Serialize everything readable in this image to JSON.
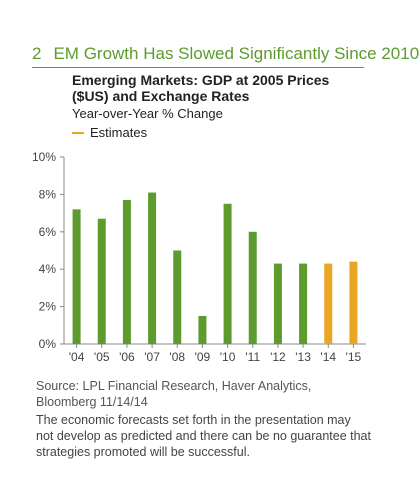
{
  "header": {
    "number": "2",
    "title": "EM Growth Has Slowed Significantly Since 2010"
  },
  "chart_data": {
    "type": "bar",
    "title": "Emerging Markets: GDP at 2005 Prices ($US) and Exchange Rates",
    "subtitle": "Year-over-Year % Change",
    "legend": [
      {
        "name": "Estimates",
        "color": "#e8a623"
      }
    ],
    "categories": [
      "'04",
      "'05",
      "'06",
      "'07",
      "'08",
      "'09",
      "'10",
      "'11",
      "'12",
      "'13",
      "'14",
      "'15"
    ],
    "values": [
      7.2,
      6.7,
      7.7,
      8.1,
      5.0,
      1.5,
      7.5,
      6.0,
      4.3,
      4.3,
      4.3,
      4.4
    ],
    "estimate_from_index": 10,
    "ylim": [
      0,
      10
    ],
    "yticks": [
      0,
      2,
      4,
      6,
      8,
      10
    ],
    "ytick_labels": [
      "0%",
      "2%",
      "4%",
      "6%",
      "8%",
      "10%"
    ],
    "colors": {
      "actual": "#5d9b2e",
      "estimate": "#e8a623"
    },
    "grid": false,
    "legend_placement": "top-left"
  },
  "footer": {
    "source": "Source: LPL Financial Research, Haver Analytics, Bloomberg 11/14/14",
    "disclaimer": "The economic forecasts set forth in the presentation may not develop as predicted and there can be no guarantee that strategies promoted will be successful."
  }
}
